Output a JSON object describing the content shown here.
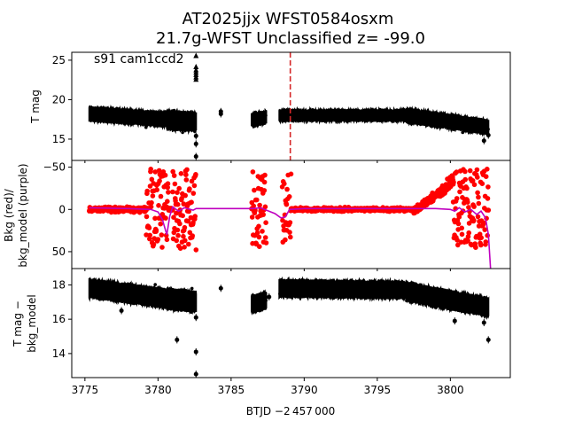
{
  "title_line1": "AT2025jjx  WFST0584osxm",
  "title_line2": "21.7g-WFST Unclassified z= -99.0",
  "xlabel": "BTJD −2 457 000",
  "x_ticks": [
    "3775",
    "3780",
    "3785",
    "3790",
    "3795",
    "3800"
  ],
  "colors": {
    "raw": "#000000",
    "bkg": "#ff0000",
    "model": "#bf00bf",
    "marker_line": "#d62728"
  },
  "chart_data": [
    {
      "type": "scatter",
      "name": "top-panel",
      "ylabel": "T mag",
      "annotation": "s91 cam1ccd2",
      "xlim": [
        3774.1,
        3804.1
      ],
      "ylim": [
        26.0,
        12.3
      ],
      "y_ticks": [
        "15",
        "20",
        "25"
      ],
      "y_tick_values": [
        15,
        20,
        25
      ],
      "vline_x": 3789.05,
      "segments": [
        {
          "x0": 3775.3,
          "x1": 3780.6,
          "y_start": 18.2,
          "y_end": 17.5,
          "spread": 0.9
        },
        {
          "x0": 3780.6,
          "x1": 3782.6,
          "y_start": 17.4,
          "y_end": 17.2,
          "spread": 1.2
        },
        {
          "x0": 3786.4,
          "x1": 3787.4,
          "y_start": 17.4,
          "y_end": 17.8,
          "spread": 0.8
        },
        {
          "x0": 3788.3,
          "x1": 3797.0,
          "y_start": 18.0,
          "y_end": 18.0,
          "spread": 0.7
        },
        {
          "x0": 3797.0,
          "x1": 3802.6,
          "y_start": 18.0,
          "y_end": 16.5,
          "spread": 0.9
        }
      ],
      "markers": [
        {
          "x": 3782.6,
          "y": 24.2
        },
        {
          "x": 3782.6,
          "y": 23.8
        },
        {
          "x": 3782.6,
          "y": 23.5
        },
        {
          "x": 3782.6,
          "y": 23.2
        },
        {
          "x": 3782.6,
          "y": 22.9
        },
        {
          "x": 3782.6,
          "y": 22.6
        },
        {
          "x": 3782.6,
          "y": 25.6
        },
        {
          "x": 3782.6,
          "y": 12.8
        },
        {
          "x": 3782.6,
          "y": 14.4
        },
        {
          "x": 3782.6,
          "y": 15.4
        },
        {
          "x": 3784.3,
          "y": 18.2
        },
        {
          "x": 3784.3,
          "y": 18.5
        },
        {
          "x": 3802.3,
          "y": 14.8
        },
        {
          "x": 3802.6,
          "y": 15.5
        },
        {
          "x": 3800.3,
          "y": 16.6
        }
      ]
    },
    {
      "type": "scatter",
      "name": "middle-panel",
      "ylabel_line1": "Bkg (red)/",
      "ylabel_line2": "bkg_model (purple)",
      "xlim": [
        3774.1,
        3804.1
      ],
      "ylim": [
        -58,
        70
      ],
      "y_ticks": [
        "50",
        "0",
        "−50"
      ],
      "y_tick_values": [
        50,
        0,
        -50
      ],
      "model_line": [
        [
          3775.3,
          -2
        ],
        [
          3778.0,
          -1
        ],
        [
          3779.5,
          0
        ],
        [
          3780.0,
          3
        ],
        [
          3780.3,
          12
        ],
        [
          3780.6,
          30
        ],
        [
          3780.8,
          8
        ],
        [
          3781.0,
          -3
        ],
        [
          3781.4,
          2
        ],
        [
          3781.8,
          -2
        ],
        [
          3782.4,
          1
        ],
        [
          3782.6,
          -1
        ],
        [
          3786.5,
          -1
        ],
        [
          3787.0,
          -2
        ],
        [
          3788.0,
          5
        ],
        [
          3788.4,
          10
        ],
        [
          3788.7,
          9
        ],
        [
          3789.0,
          0
        ],
        [
          3790.0,
          -1
        ],
        [
          3796.0,
          -1
        ],
        [
          3799.0,
          -1
        ],
        [
          3800.0,
          0
        ],
        [
          3800.3,
          2
        ],
        [
          3800.6,
          -2
        ],
        [
          3801.0,
          3
        ],
        [
          3801.4,
          0
        ],
        [
          3801.8,
          6
        ],
        [
          3802.1,
          2
        ],
        [
          3802.4,
          10
        ],
        [
          3802.6,
          30
        ],
        [
          3802.75,
          70
        ]
      ],
      "bkg_segments": [
        {
          "x0": 3775.3,
          "x1": 3779.2,
          "pattern": "flat",
          "amp": 4
        },
        {
          "x0": 3779.2,
          "x1": 3780.7,
          "pattern": "wild",
          "amp": 48
        },
        {
          "x0": 3780.7,
          "x1": 3781.0,
          "pattern": "flat",
          "amp": 3
        },
        {
          "x0": 3781.0,
          "x1": 3782.6,
          "pattern": "wild",
          "amp": 48
        },
        {
          "x0": 3786.4,
          "x1": 3787.4,
          "pattern": "wild",
          "amp": 45
        },
        {
          "x0": 3788.5,
          "x1": 3789.1,
          "pattern": "wild",
          "amp": 45
        },
        {
          "x0": 3789.1,
          "x1": 3797.5,
          "pattern": "flat",
          "amp": 3
        },
        {
          "x0": 3797.5,
          "x1": 3800.2,
          "pattern": "dip",
          "amp": 45
        },
        {
          "x0": 3800.2,
          "x1": 3802.6,
          "pattern": "wild",
          "amp": 48
        }
      ]
    },
    {
      "type": "scatter",
      "name": "bottom-panel",
      "ylabel_line1": "T mag −",
      "ylabel_line2": "bkg_model",
      "xlim": [
        3774.1,
        3804.1
      ],
      "ylim": [
        18.95,
        12.6
      ],
      "y_ticks": [
        "14",
        "16",
        "18"
      ],
      "y_tick_values": [
        14,
        16,
        18
      ],
      "segments": [
        {
          "x0": 3775.3,
          "x1": 3780.6,
          "y_start": 17.8,
          "y_end": 17.2,
          "spread": 0.55
        },
        {
          "x0": 3780.6,
          "x1": 3782.6,
          "y_start": 17.2,
          "y_end": 17.0,
          "spread": 0.6
        },
        {
          "x0": 3786.4,
          "x1": 3787.4,
          "y_start": 16.9,
          "y_end": 17.1,
          "spread": 0.5
        },
        {
          "x0": 3788.3,
          "x1": 3797.0,
          "y_start": 17.8,
          "y_end": 17.7,
          "spread": 0.5
        },
        {
          "x0": 3797.0,
          "x1": 3802.6,
          "y_start": 17.6,
          "y_end": 16.7,
          "spread": 0.55
        }
      ],
      "markers": [
        {
          "x": 3782.6,
          "y": 12.8
        },
        {
          "x": 3782.6,
          "y": 14.1
        },
        {
          "x": 3782.6,
          "y": 16.1
        },
        {
          "x": 3781.3,
          "y": 14.8
        },
        {
          "x": 3784.3,
          "y": 17.8
        },
        {
          "x": 3787.6,
          "y": 17.3
        },
        {
          "x": 3800.3,
          "y": 15.9
        },
        {
          "x": 3802.6,
          "y": 14.8
        },
        {
          "x": 3802.3,
          "y": 15.8
        },
        {
          "x": 3777.5,
          "y": 16.5
        }
      ]
    }
  ]
}
